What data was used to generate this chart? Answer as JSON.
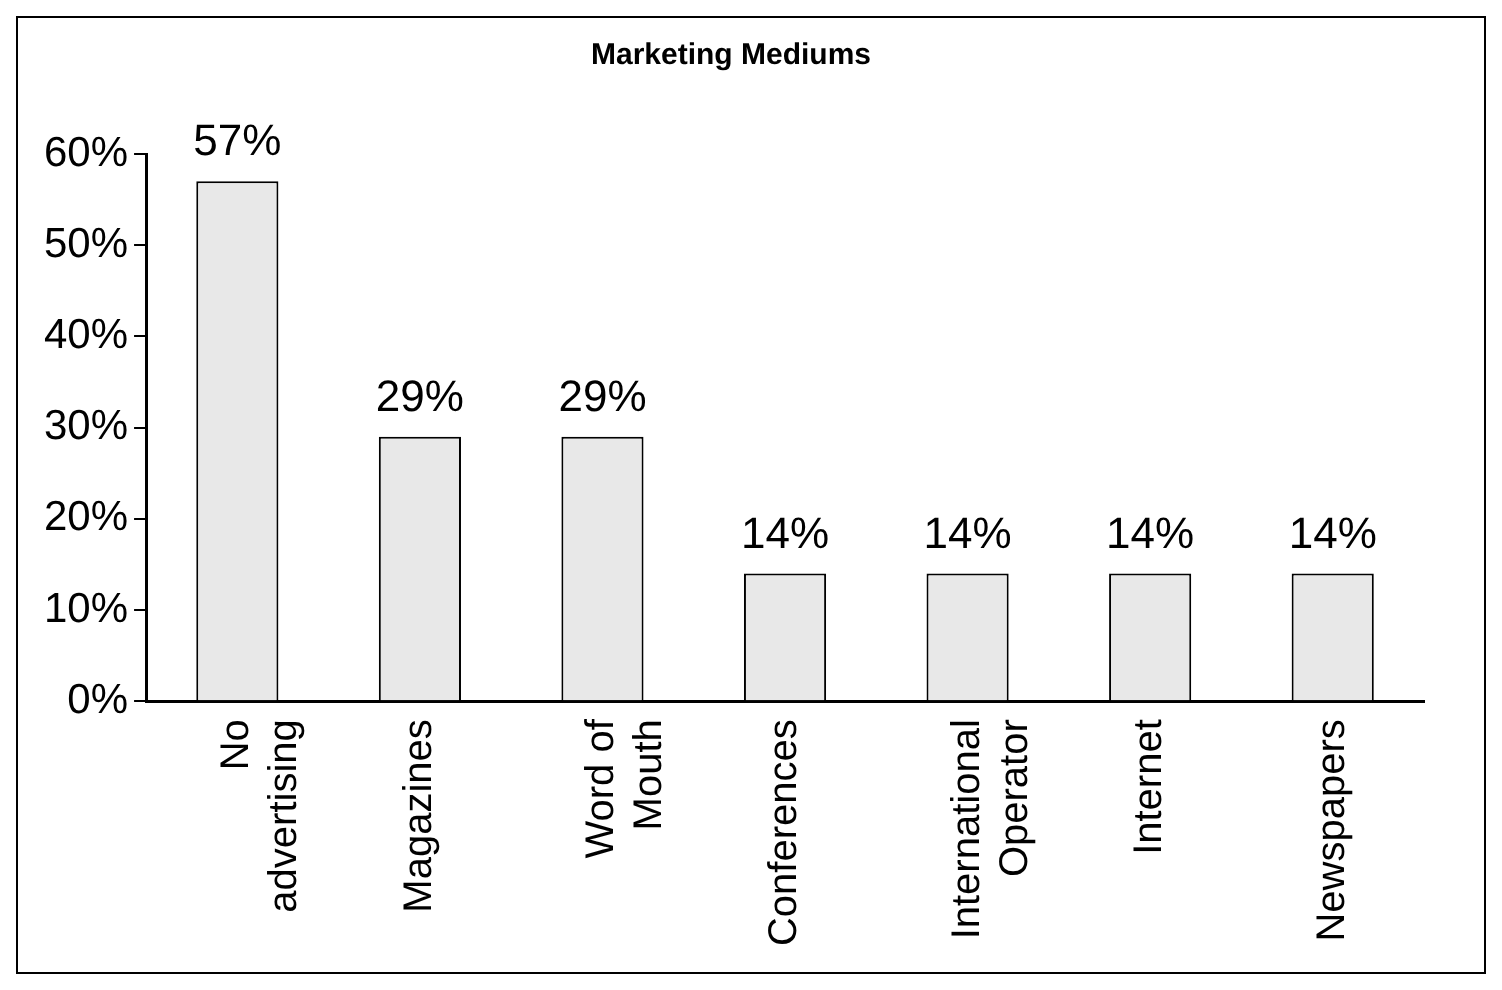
{
  "chart_data": {
    "type": "bar",
    "title": "Marketing Mediums",
    "categories": [
      "No advertising",
      "Magazines",
      "Word of Mouth",
      "Conferences",
      "International Operator",
      "Internet",
      "Newspapers"
    ],
    "values": [
      57,
      29,
      29,
      14,
      14,
      14,
      14
    ],
    "color": "#e8e8e8",
    "value_labels": [
      "57%",
      "29%",
      "29%",
      "14%",
      "14%",
      "14%",
      "14%"
    ],
    "ylim": [
      0,
      60
    ],
    "yticks": [
      {
        "value": 0,
        "label": "0%"
      },
      {
        "value": 10,
        "label": "10%"
      },
      {
        "value": 20,
        "label": "20%"
      },
      {
        "value": 30,
        "label": "30%"
      },
      {
        "value": 40,
        "label": "40%"
      },
      {
        "value": 50,
        "label": "50%"
      },
      {
        "value": 60,
        "label": "60%"
      }
    ],
    "grid": false,
    "legend": false
  }
}
